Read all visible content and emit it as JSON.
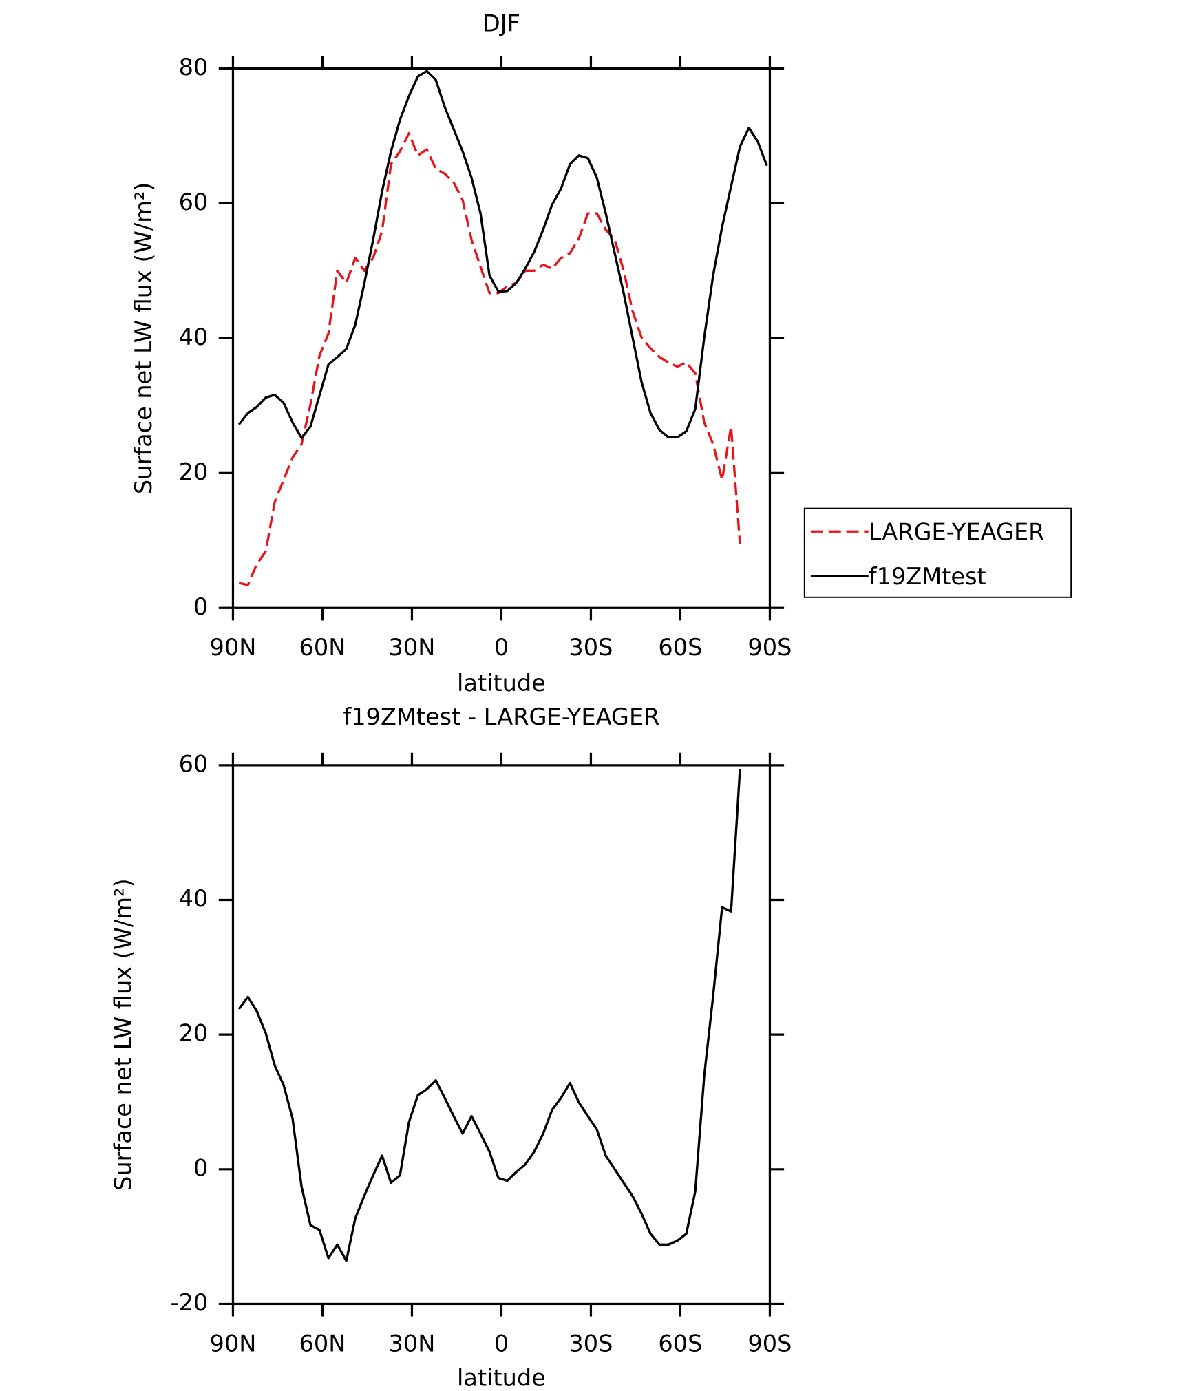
{
  "chart_data": [
    {
      "type": "line",
      "title": "DJF",
      "xlabel": "latitude",
      "ylabel": "Surface net LW flux (W/m²)",
      "xlim": [
        90,
        -90
      ],
      "xticks": [
        {
          "value": 90,
          "label": "90N"
        },
        {
          "value": 60,
          "label": "60N"
        },
        {
          "value": 30,
          "label": "30N"
        },
        0,
        {
          "value": -30,
          "label": "30S"
        },
        {
          "value": -60,
          "label": "60S"
        },
        {
          "value": -90,
          "label": "90S"
        }
      ],
      "ylim": [
        0,
        80
      ],
      "yticks": [
        0,
        20,
        40,
        60,
        80
      ],
      "legend": "right",
      "x": [
        88,
        85,
        82,
        79,
        76,
        73,
        70,
        67,
        64,
        61,
        58,
        55,
        52,
        49,
        46,
        43,
        40,
        37,
        34,
        31,
        28,
        25,
        22,
        19,
        16,
        13,
        10,
        7,
        4,
        1,
        -2,
        -5,
        -8,
        -11,
        -14,
        -17,
        -20,
        -23,
        -26,
        -29,
        -32,
        -35,
        -38,
        -41,
        -44,
        -47,
        -50,
        -53,
        -56,
        -59,
        -62,
        -65,
        -68,
        -71,
        -74,
        -77,
        -80,
        -83,
        -86,
        -89
      ],
      "series": [
        {
          "name": "LARGE-YEAGER",
          "color": "#e8141c",
          "dash": true,
          "values": [
            3.7,
            3.4,
            6.5,
            8.4,
            15.7,
            19,
            22.3,
            24.3,
            30.2,
            37.4,
            40.7,
            50,
            48.2,
            51.9,
            50,
            51.9,
            55.9,
            65.8,
            67.7,
            70.4,
            67.1,
            68,
            65.1,
            64.4,
            63.1,
            60.5,
            54.6,
            50.6,
            46.7,
            46.7,
            47.7,
            48.2,
            50,
            50,
            50.9,
            50.3,
            51.9,
            52.6,
            54.8,
            58.5,
            58.5,
            56.1,
            54.6,
            50,
            44,
            40.1,
            38.5,
            37.2,
            36.4,
            35.8,
            36.4,
            34.8,
            27.5,
            24.3,
            19,
            26.9,
            9.5,
            null,
            null,
            null
          ]
        },
        {
          "name": "f19ZMtest",
          "color": "#000000",
          "dash": false,
          "values": [
            27.2,
            28.9,
            29.8,
            31.2,
            31.6,
            30.4,
            27.5,
            25.2,
            26.9,
            31.5,
            36.1,
            37.2,
            38.4,
            42,
            48,
            54.6,
            61.8,
            67.7,
            72.4,
            75.9,
            78.8,
            79.6,
            78.3,
            74.3,
            71,
            67.7,
            63.8,
            58.5,
            49.3,
            46.9,
            47,
            48.2,
            50.3,
            52.8,
            56.1,
            59.8,
            62.2,
            65.8,
            67.1,
            66.7,
            63.8,
            58.5,
            52.6,
            46.7,
            40.1,
            33.5,
            28.9,
            26.4,
            25.3,
            25.3,
            26.2,
            29.5,
            40.1,
            49.3,
            56.5,
            62.5,
            68.4,
            71.2,
            69.1,
            65.6
          ]
        }
      ]
    },
    {
      "type": "line",
      "title": "f19ZMtest - LARGE-YEAGER",
      "xlabel": "latitude",
      "ylabel": "Surface net LW flux (W/m²)",
      "xlim": [
        90,
        -90
      ],
      "xticks": [
        {
          "value": 90,
          "label": "90N"
        },
        {
          "value": 60,
          "label": "60N"
        },
        {
          "value": 30,
          "label": "30N"
        },
        0,
        {
          "value": -30,
          "label": "30S"
        },
        {
          "value": -60,
          "label": "60S"
        },
        {
          "value": -90,
          "label": "90S"
        }
      ],
      "ylim": [
        -20,
        60
      ],
      "yticks": [
        -20,
        0,
        20,
        40,
        60
      ],
      "x": [
        88,
        85,
        82,
        79,
        76,
        73,
        70,
        67,
        64,
        61,
        58,
        55,
        52,
        49,
        46,
        43,
        40,
        37,
        34,
        31,
        28,
        25,
        22,
        19,
        16,
        13,
        10,
        7,
        4,
        1,
        -2,
        -5,
        -8,
        -11,
        -14,
        -17,
        -20,
        -23,
        -26,
        -29,
        -32,
        -35,
        -38,
        -41,
        -44,
        -47,
        -50,
        -53,
        -56,
        -59,
        -62,
        -65,
        -68,
        -71,
        -74,
        -77,
        -80,
        -83,
        -86,
        -89
      ],
      "series": [
        {
          "color": "#000000",
          "dash": false,
          "values": [
            23.8,
            25.6,
            23.5,
            20.2,
            15.4,
            12.5,
            7.5,
            -2.6,
            -8.3,
            -9,
            -13.2,
            -11.2,
            -13.6,
            -7.3,
            -4,
            -0.9,
            2,
            -2,
            -0.9,
            7,
            11,
            11.9,
            13.2,
            10.6,
            7.9,
            5.3,
            7.9,
            5.3,
            2.6,
            -1.3,
            -1.7,
            -0.4,
            0.7,
            2.6,
            5.3,
            8.8,
            10.6,
            12.8,
            9.9,
            7.9,
            5.9,
            2,
            0,
            -2,
            -4,
            -6.6,
            -9.6,
            -11.2,
            -11.2,
            -10.6,
            -9.6,
            -3.3,
            13.9,
            25.7,
            38.9,
            38.3,
            59.4,
            null,
            null,
            null
          ]
        }
      ]
    }
  ]
}
